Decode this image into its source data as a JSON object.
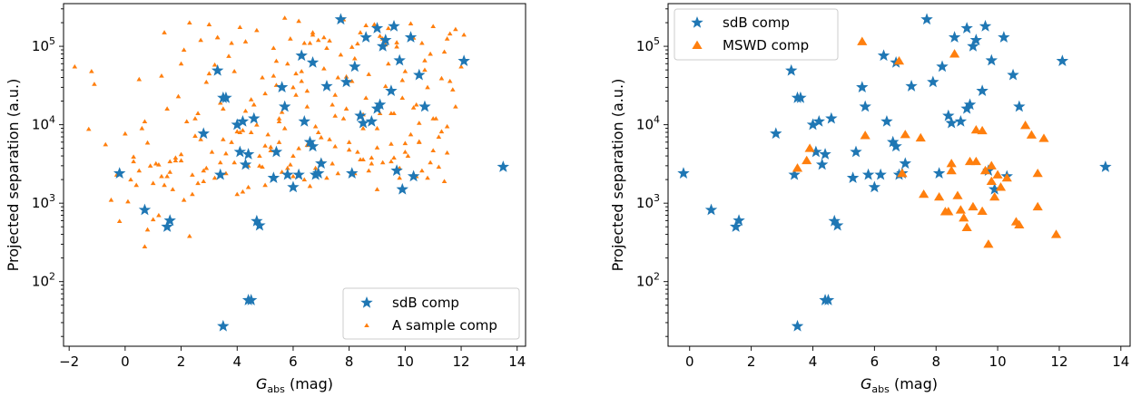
{
  "chart_data": [
    {
      "type": "scatter",
      "xlabel": "G_abs (mag)",
      "xlabel_main": "G",
      "xlabel_sub": "abs",
      "xlabel_unit": " (mag)",
      "ylabel": "Projected separation (a.u.)",
      "xlim": [
        -2.2,
        14.3
      ],
      "ylim_log": [
        15,
        350000
      ],
      "yscale": "log",
      "grid": false,
      "legend_position": "lower-right",
      "x_ticks": [
        -2,
        0,
        2,
        4,
        6,
        8,
        10,
        12,
        14
      ],
      "x_tick_labels": [
        "−2",
        "0",
        "2",
        "4",
        "6",
        "8",
        "10",
        "12",
        "14"
      ],
      "y_ticks": [
        100,
        1000,
        10000,
        100000
      ],
      "y_tick_exponents": [
        "2",
        "3",
        "4",
        "5"
      ],
      "series": [
        {
          "name": "A sample comp",
          "marker": "triangle-small",
          "color": "#ff7f0e",
          "x": [
            -1.8,
            -1.2,
            -1.1,
            -1.3,
            -0.7,
            -0.5,
            -0.3,
            -0.2,
            0.1,
            0.3,
            0.5,
            0.7,
            0.8,
            1.0,
            1.2,
            1.4,
            1.6,
            1.8,
            2.0,
            2.1,
            2.3,
            2.5,
            2.6,
            2.8,
            3.0,
            3.2,
            3.4,
            3.6,
            3.8,
            4.0,
            4.1,
            4.3,
            4.4,
            4.6,
            4.8,
            5.0,
            5.1,
            5.3,
            5.5,
            5.7,
            5.8,
            6.0,
            6.2,
            6.4,
            6.5,
            6.7,
            6.9,
            7.0,
            7.2,
            7.4,
            7.6,
            7.8,
            8.0,
            8.2,
            8.4,
            8.6,
            8.8,
            9.0,
            9.2,
            9.4,
            9.6,
            9.8,
            10.0,
            10.2,
            10.4,
            10.6,
            10.8,
            11.0,
            11.2,
            11.4,
            11.6,
            11.8,
            12.0,
            12.1,
            0.2,
            0.6,
            0.9,
            1.3,
            1.5,
            1.9,
            2.2,
            2.7,
            3.1,
            3.3,
            3.7,
            3.9,
            4.2,
            4.5,
            4.7,
            4.9,
            5.2,
            5.4,
            5.6,
            5.9,
            6.1,
            6.3,
            6.6,
            6.8,
            7.1,
            7.3,
            7.5,
            7.7,
            7.9,
            8.1,
            8.3,
            8.5,
            8.7,
            8.9,
            9.1,
            9.3,
            9.5,
            9.7,
            9.9,
            10.1,
            10.3,
            10.5,
            10.7,
            10.9,
            11.1,
            11.3,
            11.5,
            11.7,
            0.0,
            0.4,
            1.1,
            1.7,
            2.4,
            2.9,
            3.5,
            4.0,
            4.6,
            5.0,
            5.5,
            6.0,
            6.5,
            7.0,
            7.5,
            8.0,
            8.5,
            9.0,
            9.5,
            10.0,
            10.5,
            11.0,
            11.5,
            0.8,
            1.6,
            2.4,
            3.2,
            4.8,
            5.6,
            6.4,
            7.2,
            8.8,
            9.6,
            10.4,
            11.2,
            1.2,
            2.0,
            2.8,
            3.6,
            4.4,
            5.2,
            6.0,
            6.8,
            7.6,
            8.4,
            9.2,
            10.0,
            10.8,
            0.3,
            1.0,
            1.8,
            2.6,
            3.4,
            4.2,
            5.0,
            5.8,
            6.6,
            7.4,
            8.2,
            9.0,
            9.8,
            10.6,
            11.4,
            1.5,
            2.5,
            3.5,
            4.5,
            5.5,
            6.5,
            7.5,
            8.5,
            9.5,
            10.5,
            11.5,
            0.7,
            2.1,
            3.8,
            5.3,
            6.9,
            8.1,
            9.3,
            10.9,
            2.0,
            2.3,
            3.0,
            4.1,
            4.7,
            5.7,
            6.2,
            7.8,
            8.6,
            9.4,
            10.2,
            11.0,
            11.8,
            1.4,
            2.7,
            3.3,
            4.3,
            5.9,
            6.7,
            7.3,
            8.3,
            9.1,
            9.7,
            10.3,
            11.6,
            0.5,
            1.3,
            2.9,
            3.9,
            4.9,
            5.4,
            6.1,
            6.3,
            7.1,
            7.9,
            8.7,
            9.9,
            10.7,
            11.3
          ],
          "y": [
            55000,
            48000,
            33000,
            8800,
            5600,
            1100,
            2300,
            590,
            1050,
            3400,
            2600,
            280,
            460,
            620,
            700,
            1700,
            2500,
            3800,
            4200,
            1100,
            380,
            7200,
            14000,
            2600,
            45000,
            58000,
            19000,
            2400,
            6000,
            1300,
            8000,
            15000,
            3000,
            18000,
            4000,
            25000,
            7500,
            42000,
            12000,
            9000,
            60000,
            30000,
            5000,
            110000,
            27000,
            150000,
            8000,
            3500,
            95000,
            18000,
            40000,
            12000,
            6000,
            70000,
            150000,
            22000,
            3800,
            9000,
            125000,
            60000,
            14000,
            2800,
            48000,
            7500,
            18000,
            110000,
            30000,
            12000,
            7000,
            85000,
            36000,
            17000,
            55000,
            140000,
            2000,
            9000,
            3000,
            2200,
            16000,
            23000,
            11000,
            6500,
            4500,
            130000,
            75000,
            3300,
            8500,
            21000,
            10000,
            2900,
            5200,
            65000,
            14500,
            3100,
            24000,
            48000,
            110000,
            9500,
            130000,
            6500,
            24000,
            78000,
            16000,
            36000,
            4500,
            13500,
            2600,
            190000,
            14000,
            31000,
            5700,
            99000,
            22000,
            4000,
            16500,
            10500,
            66000,
            3300,
            12000,
            8200,
            125000,
            28000,
            7700,
            1700,
            3200,
            1500,
            1300,
            2800,
            6500,
            8200,
            18000,
            5400,
            6000,
            4000,
            5500,
            6900,
            5300,
            4800,
            3600,
            5100,
            3400,
            5800,
            6100,
            4700,
            4400,
            5900,
            3400,
            2300,
            2100,
            3000,
            2500,
            2000,
            2100,
            3200,
            3800,
            2200,
            2900,
            3100,
            3500,
            1900,
            4300,
            1600,
            4700,
            2200,
            2800,
            2400,
            3600,
            3300,
            4500,
            2100,
            3900,
            1800,
            3500,
            1800,
            3300,
            1400,
            1700,
            2800,
            1650,
            3200,
            2400,
            1500,
            2100,
            2600,
            1900,
            2200,
            12000,
            16000,
            8000,
            11000,
            17000,
            13000,
            9000,
            14000,
            6000,
            9500,
            11000,
            90000,
            110000,
            95000,
            120000,
            98000,
            105000,
            80000,
            60000,
            200000,
            190000,
            175000,
            160000,
            230000,
            210000,
            220000,
            185000,
            170000,
            195000,
            180000,
            165000,
            150000,
            120000,
            130000,
            115000,
            125000,
            140000,
            118000,
            108000,
            135000,
            112000,
            128000,
            145000,
            38000,
            42000,
            35000,
            48000,
            40000,
            32000,
            45000,
            36000,
            52000,
            41000,
            44000,
            37000,
            50000,
            39000
          ]
        },
        {
          "name": "sdB comp",
          "marker": "star",
          "color": "#1f77b4",
          "x": [
            -0.2,
            0.7,
            1.5,
            1.6,
            2.8,
            3.3,
            3.4,
            3.5,
            3.6,
            4.0,
            4.1,
            4.2,
            4.3,
            4.4,
            4.5,
            4.6,
            4.7,
            4.8,
            5.3,
            5.4,
            5.6,
            5.7,
            5.8,
            6.0,
            6.2,
            6.3,
            6.4,
            6.6,
            6.7,
            6.8,
            6.9,
            7.0,
            7.2,
            7.7,
            7.9,
            8.1,
            8.2,
            8.4,
            8.6,
            8.8,
            9.0,
            9.1,
            9.2,
            9.3,
            9.5,
            9.6,
            9.7,
            9.8,
            9.9,
            10.2,
            10.3,
            10.5,
            10.7,
            12.1,
            13.5,
            3.5,
            4.4,
            8.5,
            6.7,
            9.0
          ],
          "y": [
            2400,
            820,
            500,
            600,
            7700,
            49000,
            2300,
            27,
            22000,
            10000,
            4500,
            11000,
            3100,
            4200,
            58,
            12000,
            590,
            520,
            2100,
            4500,
            30000,
            17000,
            2300,
            1600,
            2300,
            76000,
            11000,
            6000,
            5300,
            2300,
            2400,
            3200,
            31000,
            220000,
            35000,
            2400,
            55000,
            13000,
            130000,
            11000,
            170000,
            18000,
            100000,
            120000,
            27000,
            180000,
            2600,
            66000,
            1500,
            130000,
            2200,
            43000,
            17000,
            65000,
            2900,
            22000,
            58,
            10500,
            62000,
            16000
          ]
        }
      ]
    },
    {
      "type": "scatter",
      "xlabel": "G_abs (mag)",
      "xlabel_main": "G",
      "xlabel_sub": "abs",
      "xlabel_unit": " (mag)",
      "ylabel": "Projected separation (a.u.)",
      "xlim": [
        -0.7,
        14.3
      ],
      "ylim_log": [
        15,
        350000
      ],
      "yscale": "log",
      "grid": false,
      "legend_position": "upper-left",
      "x_ticks": [
        0,
        2,
        4,
        6,
        8,
        10,
        12,
        14
      ],
      "x_tick_labels": [
        "0",
        "2",
        "4",
        "6",
        "8",
        "10",
        "12",
        "14"
      ],
      "y_ticks": [
        100,
        1000,
        10000,
        100000
      ],
      "y_tick_exponents": [
        "2",
        "3",
        "4",
        "5"
      ],
      "series": [
        {
          "name": "sdB comp",
          "marker": "star",
          "color": "#1f77b4",
          "x": [
            -0.2,
            0.7,
            1.5,
            1.6,
            2.8,
            3.3,
            3.4,
            3.5,
            3.6,
            4.0,
            4.1,
            4.2,
            4.3,
            4.4,
            4.5,
            4.6,
            4.7,
            4.8,
            5.3,
            5.4,
            5.6,
            5.7,
            5.8,
            6.0,
            6.2,
            6.3,
            6.4,
            6.6,
            6.7,
            6.8,
            6.9,
            7.0,
            7.2,
            7.7,
            7.9,
            8.1,
            8.2,
            8.4,
            8.6,
            8.8,
            9.0,
            9.1,
            9.2,
            9.3,
            9.5,
            9.6,
            9.7,
            9.8,
            9.9,
            10.2,
            10.3,
            10.5,
            10.7,
            12.1,
            13.5,
            3.5,
            4.4,
            8.5,
            6.7,
            9.0
          ],
          "y": [
            2400,
            820,
            500,
            600,
            7700,
            49000,
            2300,
            27,
            22000,
            10000,
            4500,
            11000,
            3100,
            4200,
            58,
            12000,
            590,
            520,
            2100,
            4500,
            30000,
            17000,
            2300,
            1600,
            2300,
            76000,
            11000,
            6000,
            5300,
            2300,
            2400,
            3200,
            31000,
            220000,
            35000,
            2400,
            55000,
            13000,
            130000,
            11000,
            170000,
            18000,
            100000,
            120000,
            27000,
            180000,
            2600,
            66000,
            1500,
            130000,
            2200,
            43000,
            17000,
            65000,
            2900,
            22000,
            58,
            10500,
            62000,
            16000
          ]
        },
        {
          "name": "MSWD comp",
          "marker": "triangle",
          "color": "#ff7f0e",
          "x": [
            3.5,
            3.8,
            3.9,
            5.6,
            5.7,
            6.8,
            6.9,
            7.0,
            7.5,
            7.6,
            8.1,
            8.3,
            8.5,
            8.5,
            8.6,
            8.7,
            8.8,
            8.9,
            9.0,
            9.1,
            9.2,
            9.3,
            9.3,
            9.5,
            9.5,
            9.6,
            9.7,
            9.8,
            9.8,
            9.9,
            10.0,
            10.1,
            10.3,
            10.6,
            10.7,
            10.9,
            11.1,
            11.3,
            11.3,
            11.5,
            11.9,
            8.4,
            6.9
          ],
          "y": [
            2800,
            3500,
            5000,
            115000,
            7300,
            65000,
            2400,
            7500,
            6800,
            1300,
            1200,
            780,
            2600,
            3200,
            80000,
            1250,
            820,
            650,
            490,
            3400,
            900,
            8600,
            3400,
            8400,
            790,
            2600,
            300,
            1900,
            3000,
            1200,
            2300,
            1600,
            2100,
            580,
            530,
            9800,
            7400,
            900,
            2400,
            6700,
            400,
            780,
            2400
          ]
        }
      ]
    }
  ]
}
